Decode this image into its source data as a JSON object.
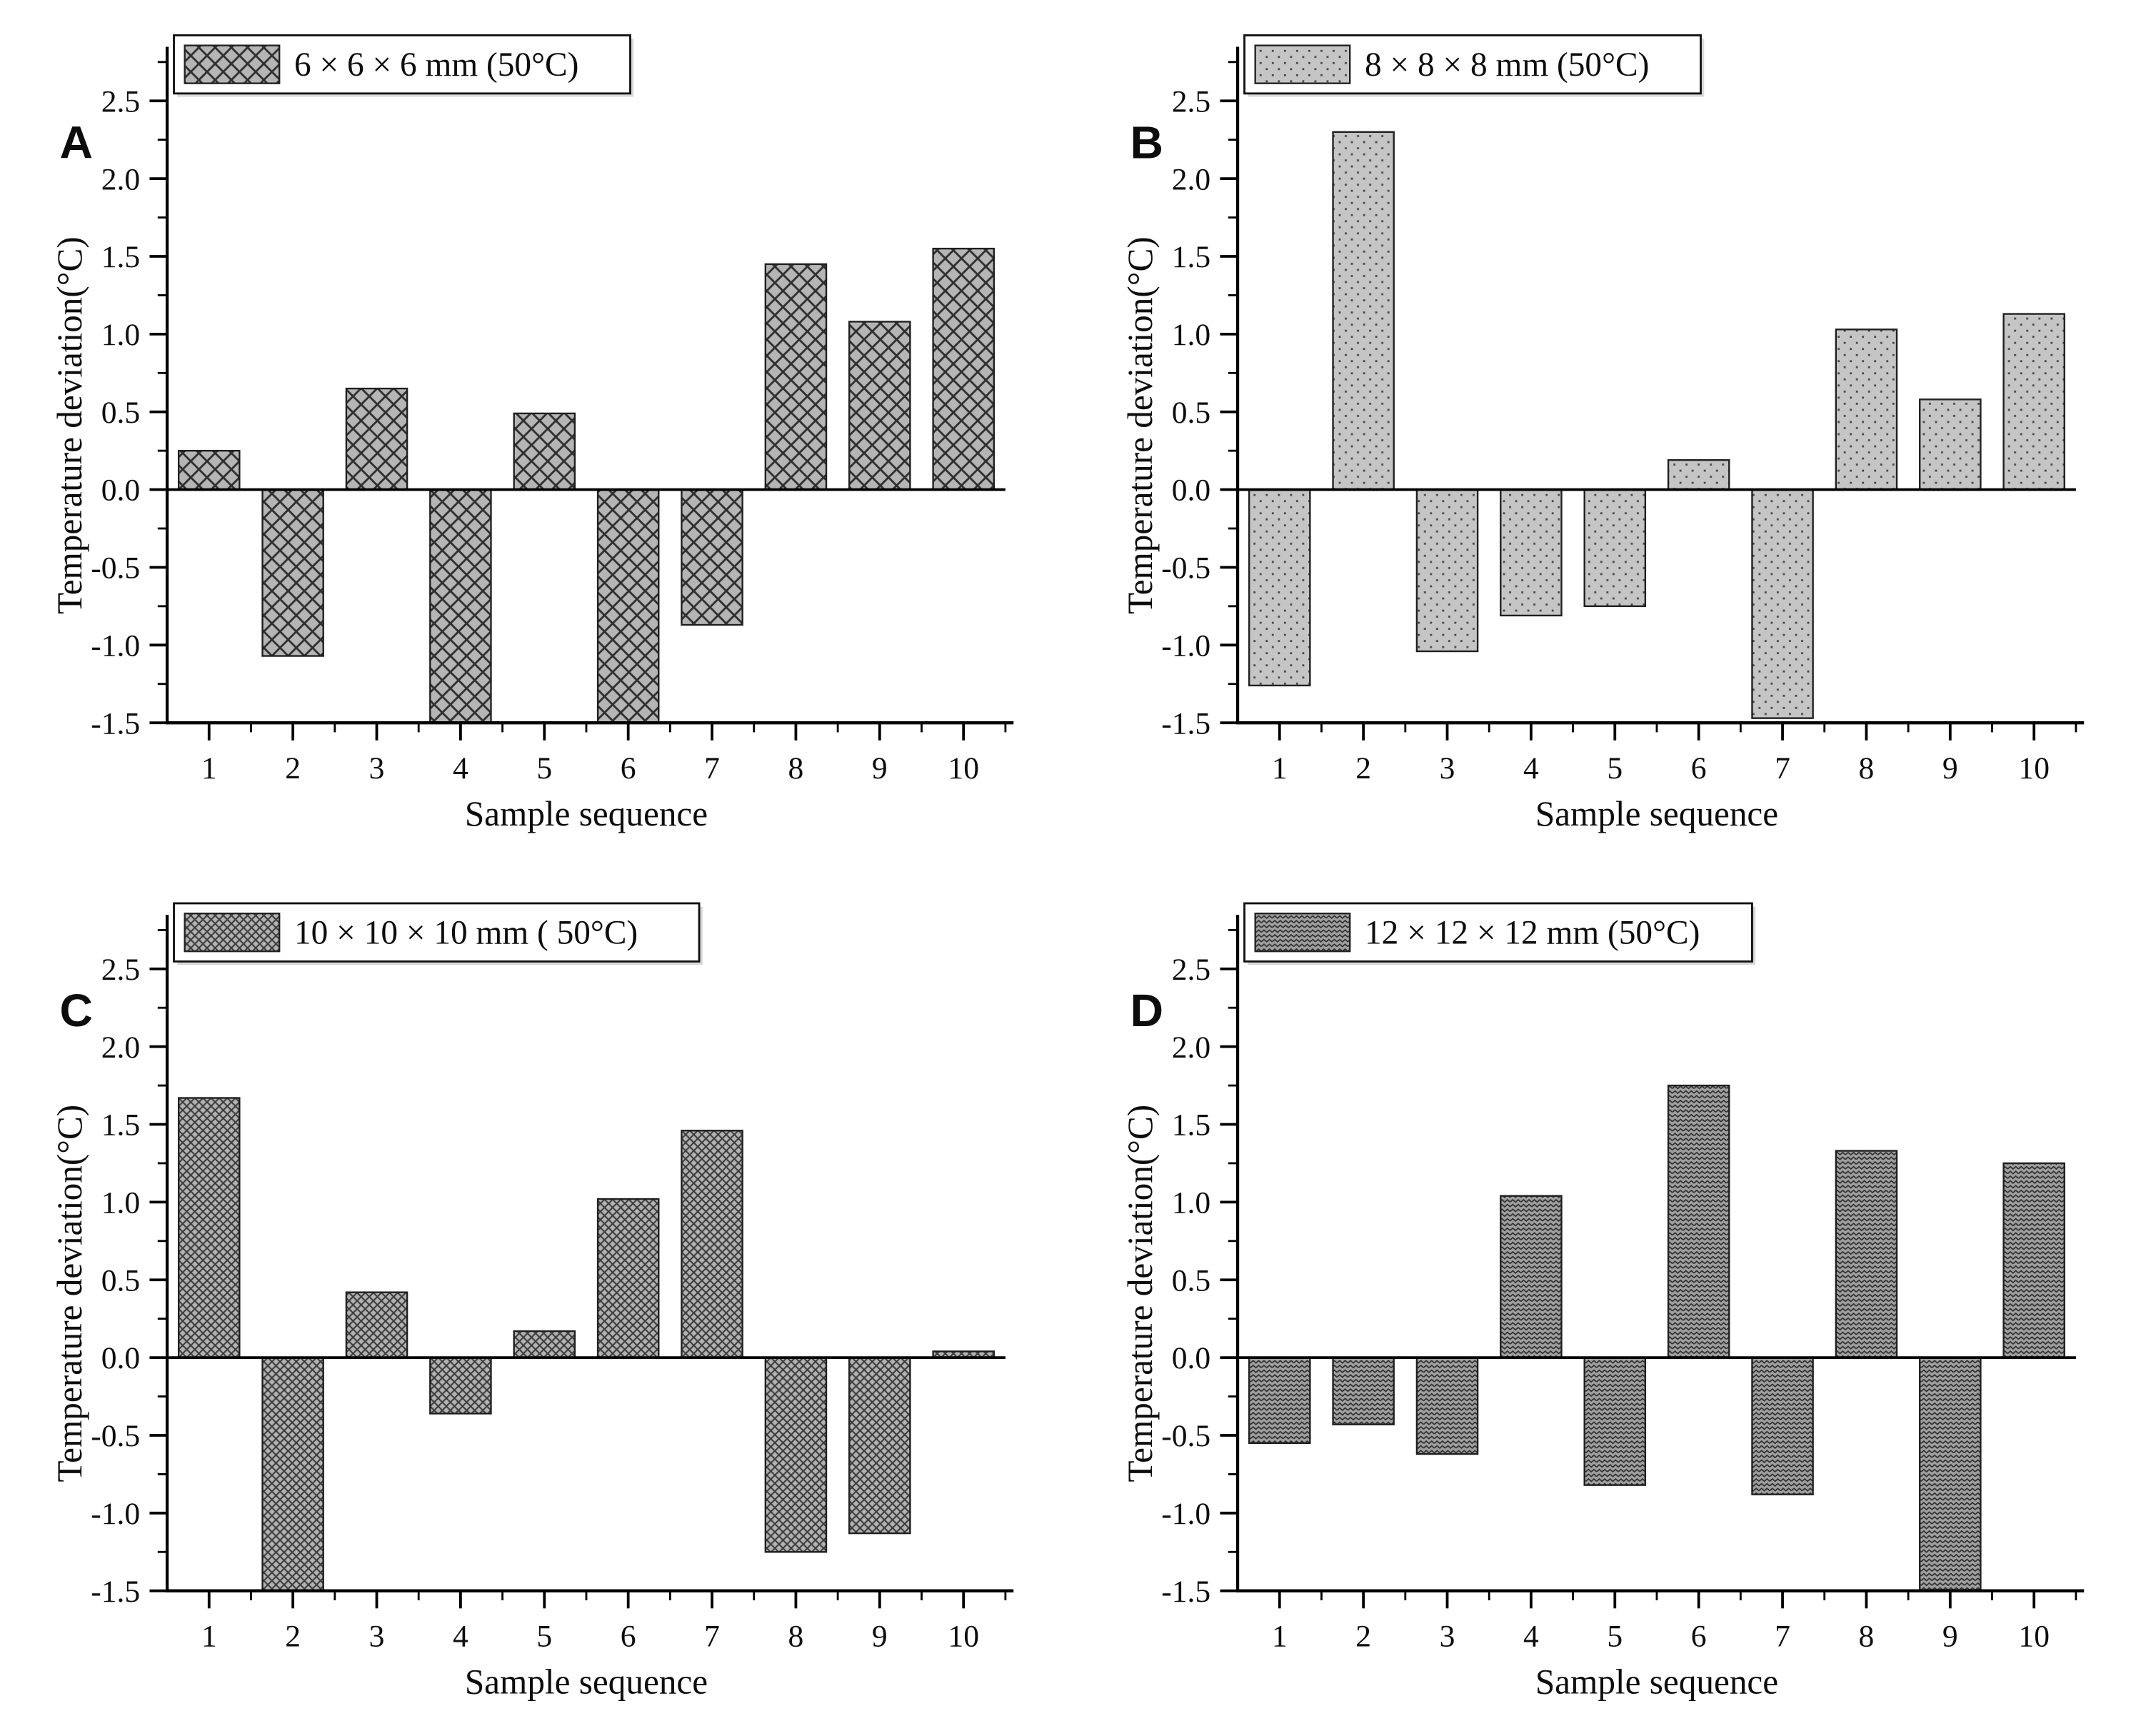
{
  "figure": {
    "background": "#ffffff",
    "axis_color": "#000000",
    "bar_edge_color": "#1f1f1f",
    "description": "Four-panel bar chart figure of temperature deviation per sample sequence for different sample cube sizes at 50 degrees C"
  },
  "chart_data": [
    {
      "type": "bar",
      "panel_label": "A",
      "legend": "6 × 6 × 6 mm (50°C)",
      "pattern": "crosshatch-large",
      "bar_fill": "#b5b5b5",
      "pattern_line": "#2f2f2f",
      "categories": [
        "1",
        "2",
        "3",
        "4",
        "5",
        "6",
        "7",
        "8",
        "9",
        "10"
      ],
      "values": [
        0.25,
        -1.07,
        0.65,
        -1.5,
        0.49,
        -1.5,
        -0.87,
        1.45,
        1.08,
        1.55
      ],
      "xlabel": "Sample sequence",
      "ylabel": "Temperature deviation(°C)",
      "ylim": [
        -1.5,
        2.75
      ],
      "yticks": [
        -1.5,
        -1.0,
        -0.5,
        0.0,
        0.5,
        1.0,
        1.5,
        2.0,
        2.5
      ],
      "ytick_labels": [
        "-1.5",
        "-1.0",
        "-0.5",
        "0.0",
        "0.5",
        "1.0",
        "1.5",
        "2.0",
        "2.5"
      ],
      "grid": false,
      "legend_position": "top-left",
      "note": "bars 4 and 6 are clipped at axis minimum -1.5"
    },
    {
      "type": "bar",
      "panel_label": "B",
      "legend": "8 × 8 × 8 mm (50°C)",
      "pattern": "dots",
      "bar_fill": "#c5c5c5",
      "pattern_line": "#4a4a4a",
      "categories": [
        "1",
        "2",
        "3",
        "4",
        "5",
        "6",
        "7",
        "8",
        "9",
        "10"
      ],
      "values": [
        -1.26,
        2.3,
        -1.04,
        -0.81,
        -0.75,
        0.19,
        -1.47,
        1.03,
        0.58,
        1.13
      ],
      "xlabel": "Sample sequence",
      "ylabel": "Temperature deviation(°C)",
      "ylim": [
        -1.5,
        2.75
      ],
      "yticks": [
        -1.5,
        -1.0,
        -0.5,
        0.0,
        0.5,
        1.0,
        1.5,
        2.0,
        2.5
      ],
      "ytick_labels": [
        "-1.5",
        "-1.0",
        "-0.5",
        "0.0",
        "0.5",
        "1.0",
        "1.5",
        "2.0",
        "2.5"
      ],
      "grid": false,
      "legend_position": "top-left",
      "note": ""
    },
    {
      "type": "bar",
      "panel_label": "C",
      "legend": "10 × 10 × 10 mm ( 50°C)",
      "pattern": "crosshatch-fine",
      "bar_fill": "#b2b2b2",
      "pattern_line": "#3c3c3c",
      "categories": [
        "1",
        "2",
        "3",
        "4",
        "5",
        "6",
        "7",
        "8",
        "9",
        "10"
      ],
      "values": [
        1.67,
        -1.5,
        0.42,
        -0.36,
        0.17,
        1.02,
        1.46,
        -1.25,
        -1.13,
        0.04
      ],
      "xlabel": "Sample sequence",
      "ylabel": "Temperature deviation(°C)",
      "ylim": [
        -1.5,
        2.75
      ],
      "yticks": [
        -1.5,
        -1.0,
        -0.5,
        0.0,
        0.5,
        1.0,
        1.5,
        2.0,
        2.5
      ],
      "ytick_labels": [
        "-1.5",
        "-1.0",
        "-0.5",
        "0.0",
        "0.5",
        "1.0",
        "1.5",
        "2.0",
        "2.5"
      ],
      "grid": false,
      "legend_position": "top-left",
      "note": "bar 2 is clipped at axis minimum -1.5"
    },
    {
      "type": "bar",
      "panel_label": "D",
      "legend": "12 × 12 × 12 mm (50°C)",
      "pattern": "zigzag",
      "bar_fill": "#a0a0a0",
      "pattern_line": "#2e2e2e",
      "categories": [
        "1",
        "2",
        "3",
        "4",
        "5",
        "6",
        "7",
        "8",
        "9",
        "10"
      ],
      "values": [
        -0.55,
        -0.43,
        -0.62,
        1.04,
        -0.82,
        1.75,
        -0.88,
        1.33,
        -1.5,
        1.25
      ],
      "xlabel": "Sample sequence",
      "ylabel": "Temperature deviation(°C)",
      "ylim": [
        -1.5,
        2.75
      ],
      "yticks": [
        -1.5,
        -1.0,
        -0.5,
        0.0,
        0.5,
        1.0,
        1.5,
        2.0,
        2.5
      ],
      "ytick_labels": [
        "-1.5",
        "-1.0",
        "-0.5",
        "0.0",
        "0.5",
        "1.0",
        "1.5",
        "2.0",
        "2.5"
      ],
      "grid": false,
      "legend_position": "top-left",
      "note": "bar 9 is clipped at axis minimum -1.5"
    }
  ]
}
